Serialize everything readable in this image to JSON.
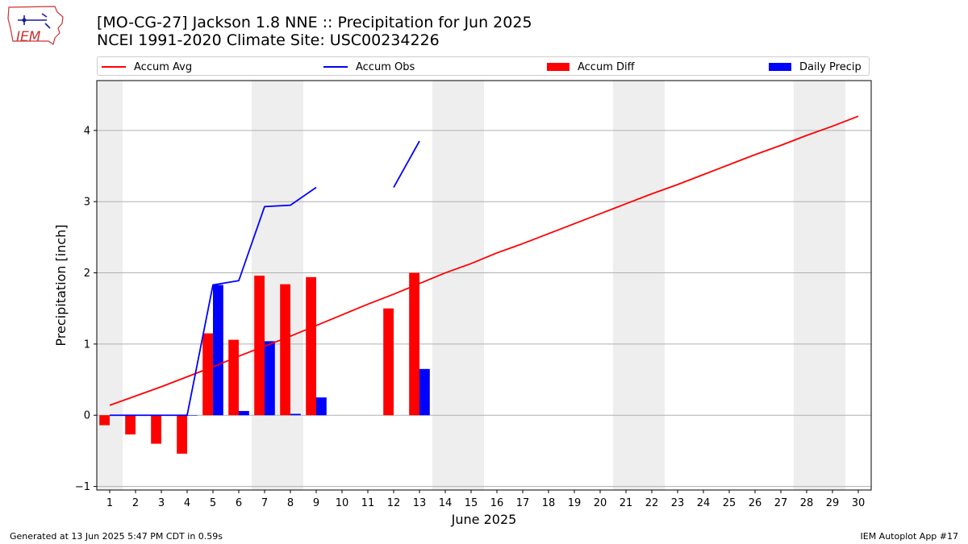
{
  "header": {
    "title_line1": "[MO-CG-27] Jackson 1.8 NNE :: Precipitation for Jun 2025",
    "title_line2": "NCEI 1991-2020 Climate Site: USC00234226",
    "logo_text": "IEM"
  },
  "legend": [
    {
      "label": "Accum Avg",
      "color": "#ff0000",
      "kind": "line"
    },
    {
      "label": "Accum Obs",
      "color": "#0000ff",
      "kind": "line"
    },
    {
      "label": "Accum Diff",
      "color": "#ff0000",
      "kind": "bar"
    },
    {
      "label": "Daily Precip",
      "color": "#0000ff",
      "kind": "bar"
    }
  ],
  "footer": {
    "left": "Generated at 13 Jun 2025 5:47 PM CDT in 0.59s",
    "right": "IEM Autoplot App #17"
  },
  "chart_data": {
    "type": "bar",
    "title": "[MO-CG-27] Jackson 1.8 NNE :: Precipitation for Jun 2025",
    "subtitle": "NCEI 1991-2020 Climate Site: USC00234226",
    "xlabel": "June 2025",
    "ylabel": "Precipitation [inch]",
    "x": [
      1,
      2,
      3,
      4,
      5,
      6,
      7,
      8,
      9,
      10,
      11,
      12,
      13,
      14,
      15,
      16,
      17,
      18,
      19,
      20,
      21,
      22,
      23,
      24,
      25,
      26,
      27,
      28,
      29,
      30
    ],
    "xlim": [
      0.5,
      30.5
    ],
    "ylim": [
      -1.05,
      4.7
    ],
    "yticks": [
      -1,
      0,
      1,
      2,
      3,
      4
    ],
    "grid": "horizontal",
    "legend_position": "top",
    "weekend_shading": [
      [
        0.5,
        1.5
      ],
      [
        6.5,
        8.5
      ],
      [
        13.5,
        15.5
      ],
      [
        20.5,
        22.5
      ],
      [
        27.5,
        29.5
      ]
    ],
    "series": [
      {
        "name": "Accum Avg",
        "type": "line",
        "color": "#ff0000",
        "values": [
          0.14,
          0.27,
          0.4,
          0.54,
          0.68,
          0.83,
          0.97,
          1.11,
          1.26,
          1.41,
          1.56,
          1.7,
          1.85,
          2.0,
          2.13,
          2.28,
          2.41,
          2.55,
          2.69,
          2.83,
          2.97,
          3.11,
          3.24,
          3.38,
          3.52,
          3.66,
          3.79,
          3.93,
          4.06,
          4.2
        ]
      },
      {
        "name": "Accum Obs",
        "type": "line",
        "color": "#0000ff",
        "values": [
          0,
          0,
          0,
          0,
          1.83,
          1.89,
          2.93,
          2.95,
          3.2,
          null,
          null,
          3.2,
          3.85,
          null,
          null,
          null,
          null,
          null,
          null,
          null,
          null,
          null,
          null,
          null,
          null,
          null,
          null,
          null,
          null,
          null
        ]
      },
      {
        "name": "Accum Diff",
        "type": "bar",
        "color": "#ff0000",
        "values": [
          -0.14,
          -0.27,
          -0.4,
          -0.54,
          1.15,
          1.06,
          1.96,
          1.84,
          1.94,
          null,
          null,
          1.5,
          2.0,
          null,
          null,
          null,
          null,
          null,
          null,
          null,
          null,
          null,
          null,
          null,
          null,
          null,
          null,
          null,
          null,
          null
        ]
      },
      {
        "name": "Daily Precip",
        "type": "bar",
        "color": "#0000ff",
        "values": [
          0,
          0,
          0,
          0,
          1.83,
          0.06,
          1.04,
          0.02,
          0.25,
          null,
          null,
          null,
          0.65,
          null,
          null,
          null,
          null,
          null,
          null,
          null,
          null,
          null,
          null,
          null,
          null,
          null,
          null,
          null,
          null,
          null
        ]
      }
    ]
  }
}
